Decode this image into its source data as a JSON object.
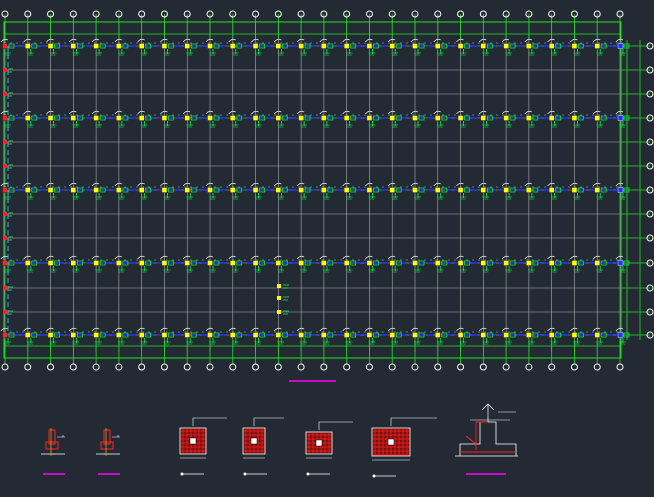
{
  "drawing": {
    "background": "#242a33",
    "colors": {
      "grid": "#d8d8d8",
      "frame": "#22e022",
      "bubble": "#ffffff",
      "column": "#ffff00",
      "beam": "#2233ff",
      "tag": "#ff2222",
      "label": "#00ff44",
      "bracket": "#dddddd",
      "magenta": "#ff00ff",
      "rebar": "#ff2222",
      "detail_border": "#ffffff"
    },
    "grid": {
      "column_lines": 28,
      "axis_rows": 5,
      "inner_rows": 10
    },
    "details": {
      "small_piers": 2,
      "footings": 4,
      "section": 1
    }
  }
}
